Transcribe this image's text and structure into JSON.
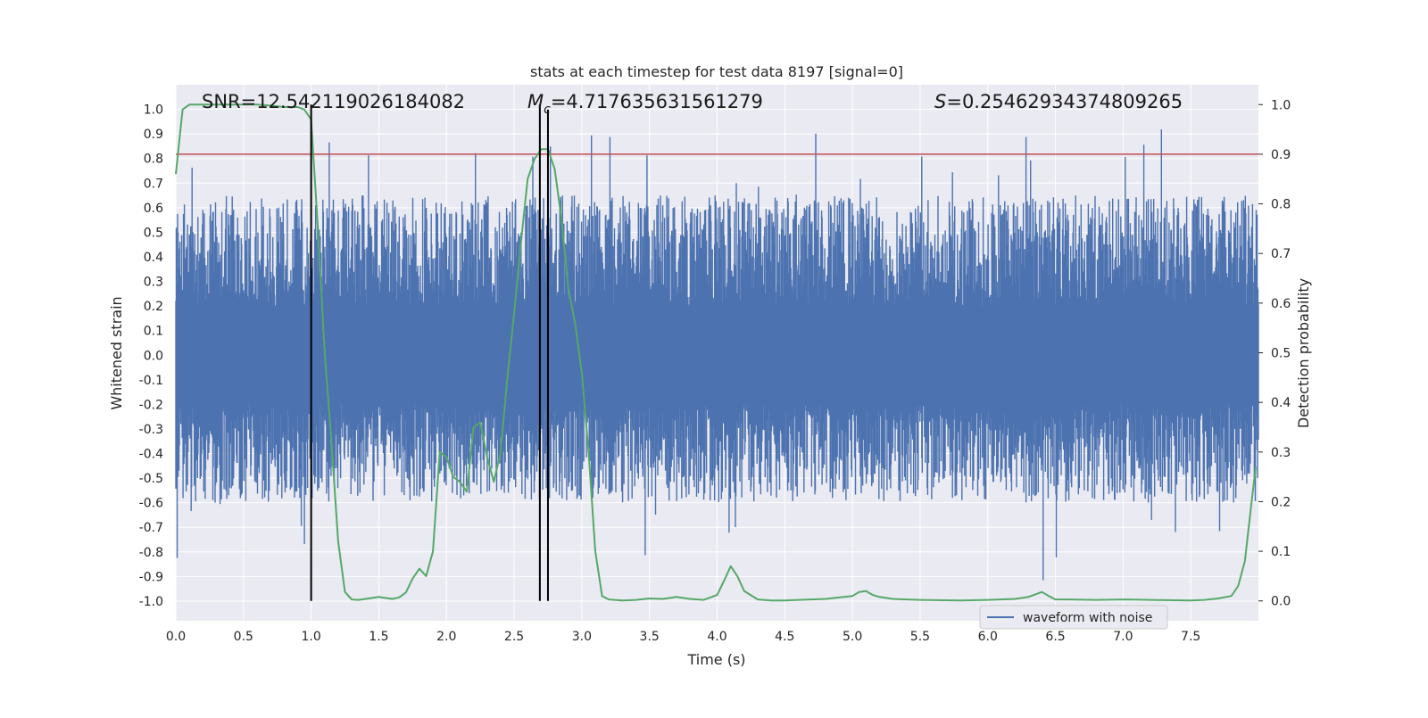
{
  "chart_data": {
    "type": "line",
    "title": "stats at each timestep for test data 8197 [signal=0]",
    "xlabel": "Time (s)",
    "ylabel_left": "Whitened strain",
    "ylabel_right": "Detection probability",
    "xlim": [
      0,
      8
    ],
    "ylim_left": [
      -1.08,
      1.1
    ],
    "ylim_right": [
      -0.04,
      1.04
    ],
    "x_ticks": [
      "0.0",
      "0.5",
      "1.0",
      "1.5",
      "2.0",
      "2.5",
      "3.0",
      "3.5",
      "4.0",
      "4.5",
      "5.0",
      "5.5",
      "6.0",
      "6.5",
      "7.0",
      "7.5"
    ],
    "y_ticks_left": [
      "1.0",
      "0.9",
      "0.8",
      "0.7",
      "0.6",
      "0.5",
      "0.4",
      "0.3",
      "0.2",
      "0.1",
      "0.0",
      "-0.1",
      "-0.2",
      "-0.3",
      "-0.4",
      "-0.5",
      "-0.6",
      "-0.7",
      "-0.8",
      "-0.9",
      "-1.0"
    ],
    "y_ticks_right": [
      "1.0",
      "0.9",
      "0.8",
      "0.7",
      "0.6",
      "0.5",
      "0.4",
      "0.3",
      "0.2",
      "0.1",
      "0.0"
    ],
    "annotations": {
      "snr": "SNR=12.542119026184082",
      "mc_symbol": "M",
      "mc_sub": "c",
      "mc_value": "=4.717635631561279",
      "s_symbol": "S",
      "s_value": "=0.25462934374809265"
    },
    "threshold": {
      "value": 0.9,
      "axis": "right",
      "color": "#c44e52"
    },
    "markers": [
      {
        "x": 1.0,
        "top": 1.0
      },
      {
        "x": 2.69,
        "top": 1.0
      },
      {
        "x": 2.75,
        "top": 0.99
      }
    ],
    "legend": {
      "label": "waveform with noise",
      "position": "bottom-right"
    },
    "colors": {
      "strain": "#4c72b0",
      "probability": "#55a868",
      "threshold": "#c44e52",
      "markers": "#000000",
      "plot_bg": "#eaeaf2",
      "grid": "#ffffff"
    },
    "series": [
      {
        "name": "waveform with noise",
        "axis": "left",
        "kind": "noise",
        "core_band": [
          -0.2,
          0.2
        ],
        "typical_range": [
          -0.6,
          0.65
        ],
        "max": 0.93,
        "min": -0.98
      },
      {
        "name": "detection probability",
        "axis": "right",
        "x": [
          0,
          0.05,
          0.1,
          0.2,
          0.3,
          0.4,
          0.5,
          0.6,
          0.7,
          0.8,
          0.9,
          0.95,
          1.0,
          1.05,
          1.1,
          1.15,
          1.2,
          1.25,
          1.3,
          1.35,
          1.4,
          1.5,
          1.6,
          1.65,
          1.7,
          1.75,
          1.8,
          1.85,
          1.9,
          1.95,
          2.0,
          2.05,
          2.1,
          2.15,
          2.2,
          2.25,
          2.3,
          2.35,
          2.4,
          2.45,
          2.5,
          2.55,
          2.6,
          2.65,
          2.7,
          2.75,
          2.8,
          2.85,
          2.9,
          2.95,
          3.0,
          3.05,
          3.1,
          3.15,
          3.2,
          3.3,
          3.4,
          3.5,
          3.6,
          3.7,
          3.8,
          3.9,
          4.0,
          4.05,
          4.1,
          4.15,
          4.2,
          4.3,
          4.4,
          4.5,
          4.6,
          4.8,
          5.0,
          5.05,
          5.1,
          5.15,
          5.2,
          5.3,
          5.4,
          5.5,
          5.8,
          6.0,
          6.2,
          6.3,
          6.4,
          6.45,
          6.5,
          6.6,
          6.8,
          7.0,
          7.2,
          7.5,
          7.6,
          7.7,
          7.8,
          7.85,
          7.9,
          7.95,
          7.98
        ],
        "values": [
          0.86,
          0.99,
          1.0,
          1.0,
          1.0,
          1.0,
          1.0,
          1.0,
          0.998,
          0.995,
          0.995,
          0.99,
          0.97,
          0.75,
          0.5,
          0.32,
          0.12,
          0.018,
          0.003,
          0.002,
          0.004,
          0.008,
          0.004,
          0.007,
          0.017,
          0.045,
          0.065,
          0.05,
          0.1,
          0.3,
          0.29,
          0.25,
          0.24,
          0.22,
          0.35,
          0.36,
          0.29,
          0.24,
          0.3,
          0.45,
          0.58,
          0.72,
          0.85,
          0.89,
          0.91,
          0.91,
          0.87,
          0.77,
          0.63,
          0.56,
          0.46,
          0.3,
          0.1,
          0.01,
          0.003,
          0.001,
          0.002,
          0.005,
          0.004,
          0.008,
          0.004,
          0.002,
          0.012,
          0.04,
          0.07,
          0.05,
          0.02,
          0.003,
          0.001,
          0.001,
          0.002,
          0.004,
          0.01,
          0.018,
          0.02,
          0.012,
          0.008,
          0.004,
          0.003,
          0.002,
          0.001,
          0.002,
          0.004,
          0.008,
          0.018,
          0.01,
          0.003,
          0.003,
          0.002,
          0.003,
          0.002,
          0.001,
          0.002,
          0.005,
          0.01,
          0.03,
          0.08,
          0.2,
          0.27
        ]
      }
    ]
  }
}
